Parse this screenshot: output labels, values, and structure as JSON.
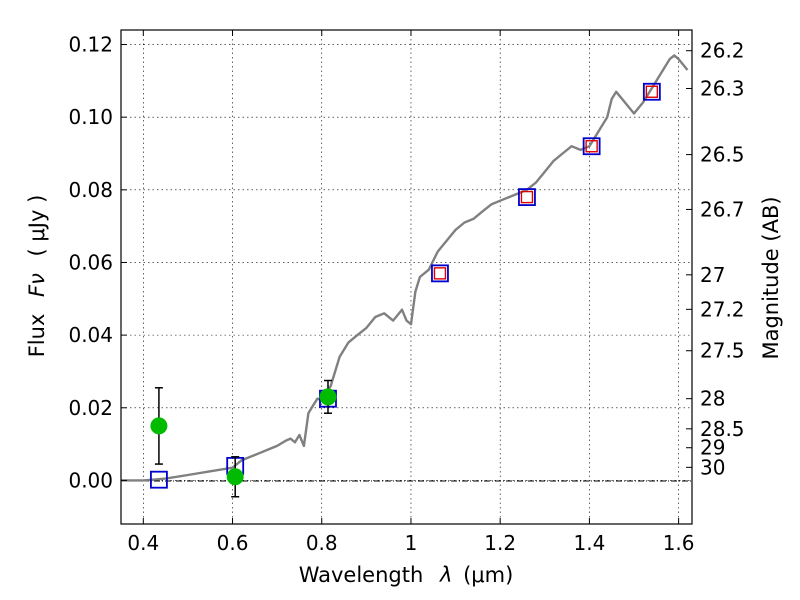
{
  "chart_data": {
    "type": "line",
    "xlabel_text": "Wavelength",
    "xlabel_symbol": "λ",
    "xlabel_unit": "(μm)",
    "ylabel_text": "Flux",
    "ylabel_symbol": "Fν",
    "ylabel_unit": "( μJy )",
    "y2label": "Magnitude (AB)",
    "xlim": [
      0.35,
      1.63
    ],
    "ylim": [
      -0.012,
      0.124
    ],
    "grid": true,
    "x_ticks": [
      0.4,
      0.6,
      0.8,
      1.0,
      1.2,
      1.4,
      1.6
    ],
    "x_tick_labels": [
      "0.4",
      "0.6",
      "0.8",
      "1",
      "1.2",
      "1.4",
      "1.6"
    ],
    "y_ticks": [
      0.0,
      0.02,
      0.04,
      0.06,
      0.08,
      0.1,
      0.12
    ],
    "y_tick_labels": [
      "0.00",
      "0.02",
      "0.04",
      "0.06",
      "0.08",
      "0.10",
      "0.12"
    ],
    "y2_ticks": [
      {
        "label": "26.2",
        "flux": 0.1183
      },
      {
        "label": "26.3",
        "flux": 0.1079
      },
      {
        "label": "26.5",
        "flux": 0.0897
      },
      {
        "label": "26.7",
        "flux": 0.0746
      },
      {
        "label": "27",
        "flux": 0.0566
      },
      {
        "label": "27.2",
        "flux": 0.0471
      },
      {
        "label": "27.5",
        "flux": 0.0357
      },
      {
        "label": "28",
        "flux": 0.0225
      },
      {
        "label": "28.5",
        "flux": 0.0142
      },
      {
        "label": "29",
        "flux": 0.009
      },
      {
        "label": "30",
        "flux": 0.0036
      }
    ],
    "colors": {
      "model": "#808080",
      "model_points": "#0000cc",
      "model_points_inner": "#dd0000",
      "observed": "#00bb00",
      "error": "#000000"
    },
    "series": [
      {
        "kind": "model_spectrum",
        "x": [
          0.35,
          0.4,
          0.45,
          0.5,
          0.55,
          0.6,
          0.62,
          0.64,
          0.66,
          0.68,
          0.7,
          0.72,
          0.73,
          0.74,
          0.75,
          0.76,
          0.77,
          0.78,
          0.785,
          0.79,
          0.8,
          0.82,
          0.84,
          0.86,
          0.88,
          0.9,
          0.92,
          0.94,
          0.96,
          0.98,
          0.99,
          1.0,
          1.01,
          1.02,
          1.04,
          1.06,
          1.08,
          1.1,
          1.12,
          1.14,
          1.16,
          1.18,
          1.2,
          1.22,
          1.24,
          1.26,
          1.28,
          1.3,
          1.32,
          1.34,
          1.36,
          1.38,
          1.4,
          1.42,
          1.44,
          1.45,
          1.46,
          1.48,
          1.5,
          1.52,
          1.54,
          1.56,
          1.58,
          1.59,
          1.6,
          1.62
        ],
        "y": [
          0.0,
          0.0,
          0.0005,
          0.0015,
          0.0025,
          0.0035,
          0.0055,
          0.0065,
          0.0075,
          0.0085,
          0.0095,
          0.011,
          0.0115,
          0.0105,
          0.0125,
          0.0095,
          0.0185,
          0.0205,
          0.0215,
          0.0225,
          0.0222,
          0.026,
          0.034,
          0.038,
          0.04,
          0.042,
          0.045,
          0.046,
          0.044,
          0.047,
          0.044,
          0.043,
          0.052,
          0.056,
          0.058,
          0.063,
          0.066,
          0.069,
          0.071,
          0.072,
          0.074,
          0.076,
          0.077,
          0.078,
          0.079,
          0.08,
          0.082,
          0.085,
          0.088,
          0.09,
          0.092,
          0.091,
          0.092,
          0.096,
          0.1,
          0.105,
          0.107,
          0.104,
          0.101,
          0.104,
          0.108,
          0.112,
          0.116,
          0.117,
          0.116,
          0.113
        ]
      },
      {
        "kind": "model_points",
        "x": [
          0.435,
          0.606,
          0.814,
          1.065,
          1.26,
          1.405,
          1.54
        ],
        "y": [
          0.0002,
          0.004,
          0.0225,
          0.057,
          0.078,
          0.092,
          0.107
        ]
      },
      {
        "kind": "observed",
        "x": [
          0.435,
          0.606,
          0.814
        ],
        "y": [
          0.015,
          0.001,
          0.023
        ],
        "yerr": [
          0.0105,
          0.0055,
          0.0045
        ]
      }
    ]
  }
}
